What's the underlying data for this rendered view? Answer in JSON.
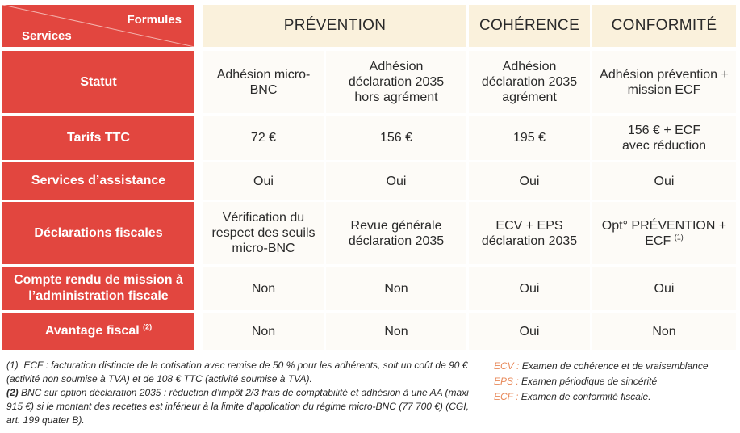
{
  "corner": {
    "formules": "Formules",
    "services": "Services"
  },
  "columns": [
    "PRÉVENTION",
    "COHÉRENCE",
    "CONFORMITÉ"
  ],
  "rows": {
    "statut": {
      "label": "Statut",
      "cells": [
        "Adhésion micro-BNC",
        "Adhésion déclaration 2035 hors agrément",
        "Adhésion déclaration 2035 agrément",
        "Adhésion prévention + mission ECF"
      ]
    },
    "tarifs": {
      "label": "Tarifs TTC",
      "cells": [
        "72 €",
        "156 €",
        "195 €",
        "156 € + ECF avec réduction"
      ]
    },
    "assistance": {
      "label": "Services d’assistance",
      "cells": [
        "Oui",
        "Oui",
        "Oui",
        "Oui"
      ]
    },
    "declarations": {
      "label": "Déclarations fiscales",
      "cells": [
        "Vérification du respect des seuils micro-BNC",
        "Revue générale déclaration 2035",
        "ECV + EPS déclaration 2035",
        "Opt° PRÉVENTION + ECF"
      ],
      "last_sup": "(1)"
    },
    "compte_rendu": {
      "label": "Compte rendu de mission à l’administration fiscale",
      "cells": [
        "Non",
        "Non",
        "Oui",
        "Oui"
      ]
    },
    "avantage": {
      "label": "Avantage fiscal",
      "label_sup": "(2)",
      "cells": [
        "Non",
        "Non",
        "Oui",
        "Non"
      ]
    }
  },
  "footnotes": {
    "n1_marker": "(1)",
    "n1_text": "ECF : facturation distincte de la cotisation avec remise de 50 % pour les adhérents, soit un coût de 90 € (activité non soumise à TVA) et de 108 € TTC (activité soumise à TVA).",
    "n2_marker": "(2)",
    "n2_a": "BNC",
    "n2_underlined": "sur option",
    "n2_b": "déclaration 2035 : réduction d’impôt 2/3 frais de comptabilité et adhésion à une AA (maxi 915 €) si le montant des recettes est inférieur à la limite  d’application du régime micro-BNC (77 700 €) (CGI, art. 199 quater B)."
  },
  "glossary": [
    {
      "abbr": "ECV :",
      "text": "Examen de cohérence et de vraisemblance"
    },
    {
      "abbr": "EPS :",
      "text": "Examen périodique de sincérité"
    },
    {
      "abbr": "ECF :",
      "text": "Examen de conformité fiscale."
    }
  ],
  "colors": {
    "red": "#e2463f",
    "header_cream": "#faf1dc",
    "cell_bg": "#fdfbf7",
    "accent_orange": "#e8895a"
  }
}
